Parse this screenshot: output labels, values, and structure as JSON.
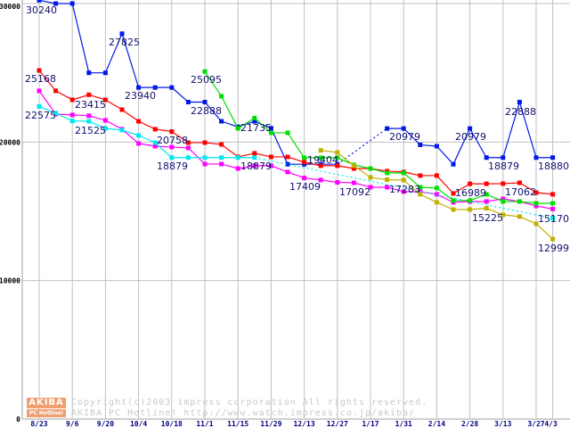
{
  "chart_data": {
    "type": "line",
    "title": "",
    "xlabel": "",
    "ylabel": "",
    "ylim": [
      0,
      30000
    ],
    "yticks": [
      "30000",
      "20000",
      "10000",
      "0"
    ],
    "ytick_values": [
      30000,
      20000,
      10000,
      0
    ],
    "grid": true,
    "x_tick_labels": [
      "8/23",
      "9/6",
      "9/20",
      "10/4",
      "10/18",
      "11/1",
      "11/15",
      "11/29",
      "12/13",
      "12/27",
      "1/17",
      "1/31",
      "2/14",
      "2/28",
      "3/13",
      "3/27",
      "4/3"
    ],
    "x_tick_index": [
      0,
      2,
      4,
      6,
      8,
      10,
      12,
      14,
      16,
      18,
      20,
      22,
      24,
      26,
      28,
      30,
      31
    ],
    "series": [
      {
        "name": "blue",
        "color": "#0018e8",
        "points": [
          [
            0,
            30240
          ],
          [
            1,
            30000
          ],
          [
            2,
            30000
          ],
          [
            3,
            25000
          ],
          [
            4,
            25000
          ],
          [
            5,
            27825
          ],
          [
            6,
            23940
          ],
          [
            7,
            23940
          ],
          [
            8,
            23940
          ],
          [
            9,
            22888
          ],
          [
            10,
            22888
          ],
          [
            11,
            21500
          ],
          [
            12,
            21100
          ],
          [
            13,
            21500
          ],
          [
            14,
            21000
          ],
          [
            15,
            18400
          ],
          [
            16,
            18400
          ],
          [
            17,
            18400
          ],
          [
            18,
            18400
          ],
          [
            21,
            20979
          ],
          [
            22,
            20979
          ],
          [
            23,
            19800
          ],
          [
            24,
            19700
          ],
          [
            25,
            18400
          ],
          [
            26,
            20979
          ],
          [
            27,
            18879
          ],
          [
            28,
            18879
          ],
          [
            29,
            22888
          ],
          [
            30,
            18879
          ],
          [
            31,
            18880
          ]
        ],
        "dashed_after": [
          18
        ]
      },
      {
        "name": "red",
        "color": "#ff0000",
        "points": [
          [
            0,
            25168
          ],
          [
            1,
            23700
          ],
          [
            2,
            23050
          ],
          [
            3,
            23415
          ],
          [
            4,
            23050
          ],
          [
            5,
            22340
          ],
          [
            6,
            21500
          ],
          [
            7,
            20930
          ],
          [
            8,
            20758
          ],
          [
            9,
            19960
          ],
          [
            10,
            19960
          ],
          [
            11,
            19830
          ],
          [
            12,
            18930
          ],
          [
            13,
            19190
          ],
          [
            14,
            18930
          ],
          [
            15,
            18930
          ],
          [
            16,
            18545
          ],
          [
            17,
            18290
          ],
          [
            18,
            18290
          ],
          [
            19,
            18090
          ],
          [
            20,
            18090
          ],
          [
            21,
            17900
          ],
          [
            22,
            17840
          ],
          [
            23,
            17580
          ],
          [
            24,
            17580
          ],
          [
            25,
            16290
          ],
          [
            26,
            16989
          ],
          [
            27,
            16989
          ],
          [
            28,
            17000
          ],
          [
            29,
            17062
          ],
          [
            30,
            16350
          ],
          [
            31,
            16230
          ]
        ],
        "dashed_after": []
      },
      {
        "name": "magenta",
        "color": "#ff00ff",
        "points": [
          [
            0,
            23700
          ],
          [
            1,
            22020
          ],
          [
            2,
            21960
          ],
          [
            3,
            21900
          ],
          [
            4,
            21570
          ],
          [
            5,
            20930
          ],
          [
            6,
            19900
          ],
          [
            7,
            19700
          ],
          [
            8,
            19640
          ],
          [
            9,
            19580
          ],
          [
            10,
            18415
          ],
          [
            11,
            18415
          ],
          [
            12,
            18090
          ],
          [
            13,
            18290
          ],
          [
            14,
            18290
          ],
          [
            15,
            17840
          ],
          [
            16,
            17409
          ],
          [
            17,
            17260
          ],
          [
            18,
            17092
          ],
          [
            19,
            17060
          ],
          [
            20,
            16740
          ],
          [
            21,
            16740
          ],
          [
            22,
            16420
          ],
          [
            23,
            16420
          ],
          [
            24,
            16230
          ],
          [
            25,
            15650
          ],
          [
            26,
            15710
          ],
          [
            27,
            15710
          ],
          [
            28,
            15900
          ],
          [
            29,
            15710
          ],
          [
            30,
            15390
          ],
          [
            31,
            15170
          ]
        ],
        "dashed_after": []
      },
      {
        "name": "cyan",
        "color": "#00e8f0",
        "points": [
          [
            0,
            22575
          ],
          [
            1,
            22090
          ],
          [
            2,
            21525
          ],
          [
            3,
            21500
          ],
          [
            4,
            20990
          ],
          [
            5,
            20860
          ],
          [
            6,
            20480
          ],
          [
            7,
            19960
          ],
          [
            8,
            18879
          ],
          [
            9,
            18879
          ],
          [
            10,
            18879
          ],
          [
            11,
            18879
          ],
          [
            12,
            18879
          ],
          [
            13,
            18879
          ],
          [
            31,
            14500
          ]
        ],
        "dashed_after": [
          13
        ]
      },
      {
        "name": "green",
        "color": "#00e000",
        "points": [
          [
            10,
            25095
          ],
          [
            11,
            23310
          ],
          [
            12,
            20990
          ],
          [
            13,
            21735
          ],
          [
            14,
            20670
          ],
          [
            15,
            20670
          ],
          [
            16,
            18870
          ],
          [
            17,
            18870
          ],
          [
            18,
            18870
          ],
          [
            19,
            18350
          ],
          [
            20,
            18090
          ],
          [
            21,
            17770
          ],
          [
            22,
            17770
          ],
          [
            23,
            16740
          ],
          [
            24,
            16680
          ],
          [
            25,
            15780
          ],
          [
            26,
            15780
          ],
          [
            27,
            16230
          ],
          [
            28,
            15710
          ],
          [
            29,
            15710
          ],
          [
            30,
            15580
          ],
          [
            31,
            15580
          ]
        ],
        "dashed_after": []
      },
      {
        "name": "olive",
        "color": "#c0b000",
        "points": [
          [
            17,
            19404
          ],
          [
            18,
            19250
          ],
          [
            19,
            18290
          ],
          [
            20,
            17450
          ],
          [
            21,
            17283
          ],
          [
            22,
            17260
          ],
          [
            23,
            16230
          ],
          [
            24,
            15650
          ],
          [
            25,
            15130
          ],
          [
            26,
            15130
          ],
          [
            27,
            15225
          ],
          [
            28,
            14750
          ],
          [
            29,
            14620
          ],
          [
            30,
            14100
          ],
          [
            31,
            12999
          ]
        ],
        "dashed_after": []
      }
    ],
    "annotations": [
      "30240",
      "25168",
      "22575",
      "23415",
      "21525",
      "27825",
      "23940",
      "20758",
      "18879",
      "25095",
      "22888",
      "21735",
      "18879",
      "17409",
      "19404",
      "17092",
      "17283",
      "20979",
      "20979",
      "16989",
      "15225",
      "22888",
      "17062",
      "18879",
      "18880",
      "15170",
      "12999"
    ]
  },
  "watermark": {
    "logo_top": "AKIBA",
    "logo_bottom": "PC Hotline!",
    "line1": "Copyright(c)2003 impress corporation All rights reserved.",
    "line2": "AKIBA PC Hotline!  http://www.watch.impress.co.jp/akiba/"
  }
}
